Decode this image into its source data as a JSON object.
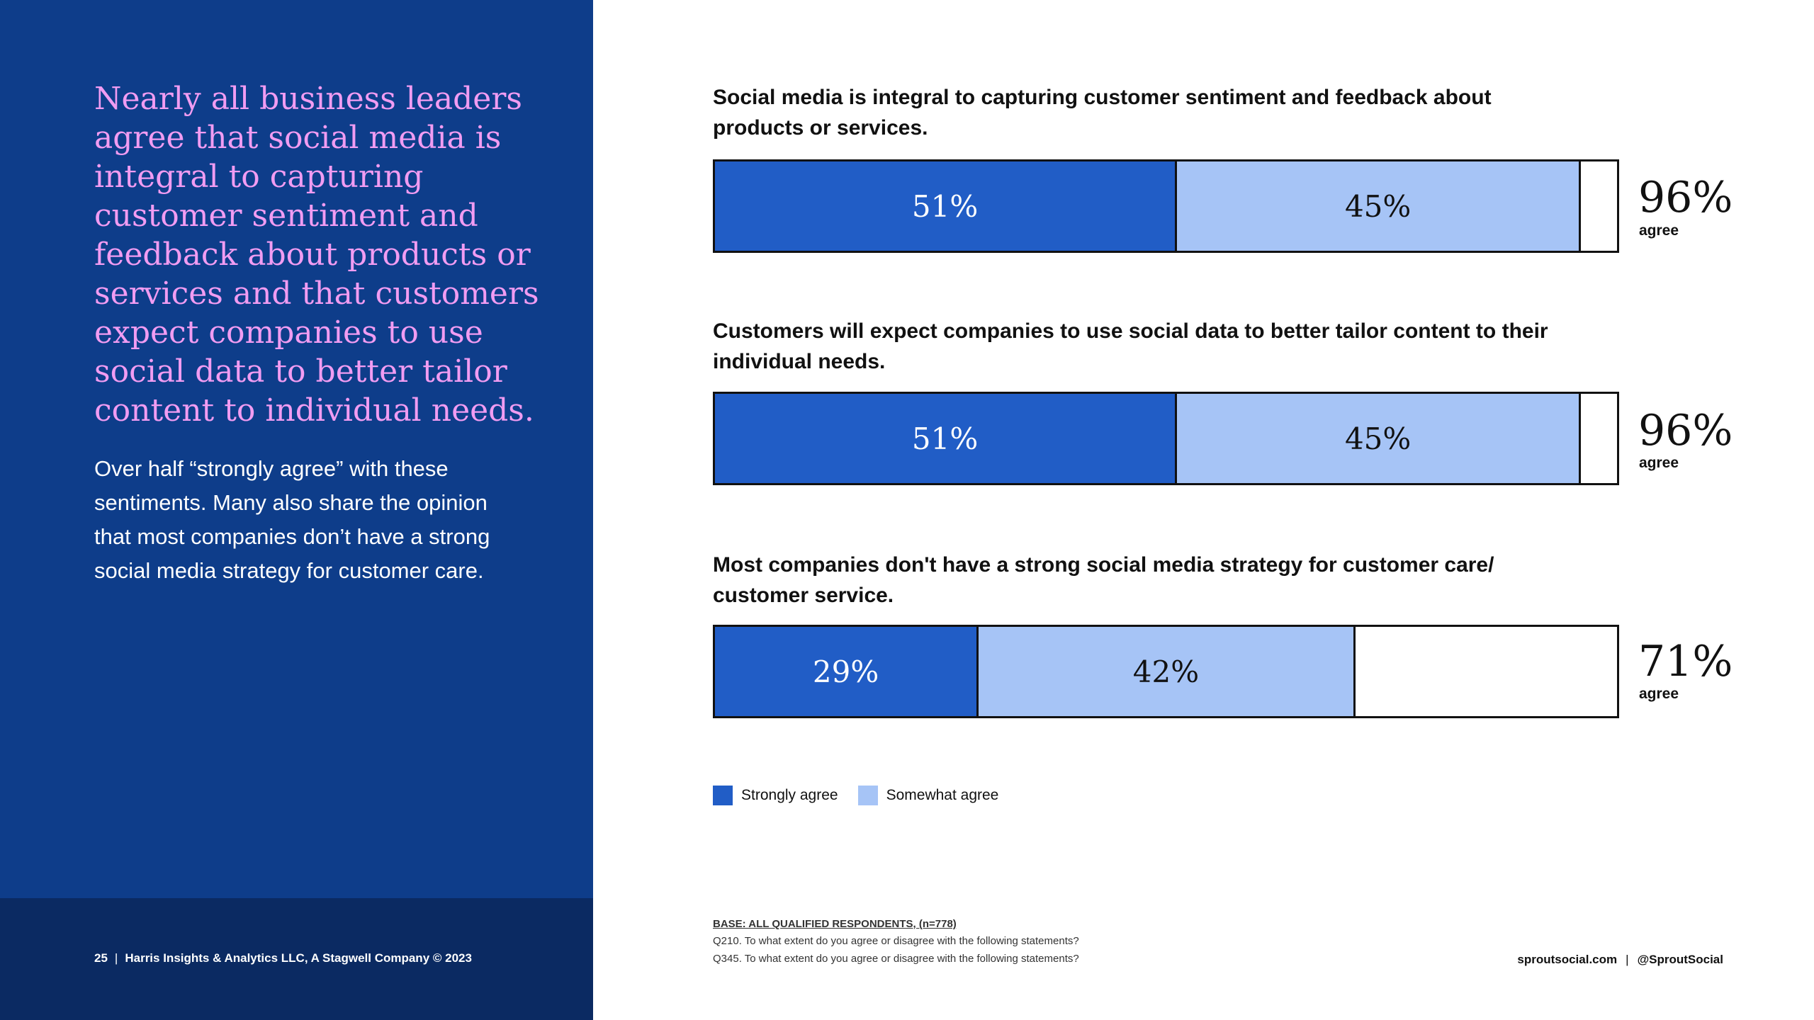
{
  "left_panel": {
    "headline": "Nearly all business leaders agree that social media is integral to capturing customer sentiment and feedback about products or services and that customers expect companies to use social data to better tailor content to individual needs.",
    "subcopy": "Over half “strongly agree” with these sentiments. Many also share the opinion that most companies don’t have a strong social media strategy for customer care.",
    "footer": {
      "page_number": "25",
      "separator": "|",
      "credit": "Harris Insights & Analytics LLC, A Stagwell Company © 2023"
    }
  },
  "colors": {
    "strongly_agree": "#215dc6",
    "somewhat_agree": "#a6c4f6",
    "panel_bg": "#0e3d8a",
    "headline": "#f19cf2"
  },
  "chart_data": {
    "type": "bar",
    "orientation": "horizontal-stacked",
    "categories": [
      "Social media is integral to capturing customer sentiment and feedback about products or services.",
      "Customers will expect companies to use social data to better tailor content to their individual needs.",
      "Most companies don't have a strong social media strategy for customer care/ customer service."
    ],
    "series": [
      {
        "name": "Strongly agree",
        "values": [
          51,
          51,
          29
        ],
        "labels": [
          "51%",
          "51%",
          "29%"
        ]
      },
      {
        "name": "Somewhat agree",
        "values": [
          45,
          45,
          42
        ],
        "labels": [
          "45%",
          "45%",
          "42%"
        ]
      }
    ],
    "totals": [
      96,
      96,
      71
    ],
    "total_labels": [
      "96%",
      "96%",
      "71%"
    ],
    "total_caption": "agree",
    "xlim": [
      0,
      100
    ],
    "legend": [
      "Strongly agree",
      "Somewhat agree"
    ],
    "legend_position": "bottom-left"
  },
  "notes": {
    "base": "BASE: ALL QUALIFIED RESPONDENTS, (n=778)",
    "q210": "Q210. To what extent do you agree or disagree with the following statements?",
    "q345": "Q345. To what extent do you agree or disagree with the following statements?"
  },
  "footer_right": {
    "site": "sproutsocial.com",
    "separator": "|",
    "handle": "@SproutSocial"
  }
}
